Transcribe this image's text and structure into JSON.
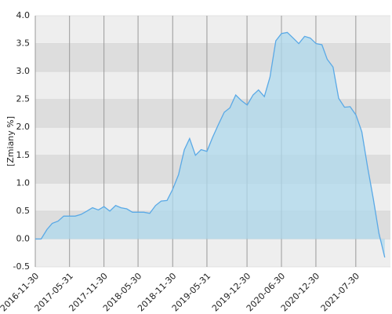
{
  "chart_data": {
    "type": "area",
    "y_label": "[Zmiany %]",
    "x": [
      "2016-11-30",
      "2016-12-31",
      "2017-01-31",
      "2017-02-28",
      "2017-03-31",
      "2017-04-30",
      "2017-05-31",
      "2017-06-30",
      "2017-07-31",
      "2017-08-31",
      "2017-09-30",
      "2017-10-31",
      "2017-11-30",
      "2017-12-31",
      "2018-01-31",
      "2018-02-28",
      "2018-03-31",
      "2018-04-30",
      "2018-05-31",
      "2018-06-30",
      "2018-07-31",
      "2018-08-31",
      "2018-09-30",
      "2018-10-31",
      "2018-11-30",
      "2018-12-31",
      "2019-01-31",
      "2019-02-28",
      "2019-03-31",
      "2019-04-30",
      "2019-05-31",
      "2019-06-30",
      "2019-07-31",
      "2019-08-31",
      "2019-09-30",
      "2019-10-31",
      "2019-11-30",
      "2019-12-31",
      "2020-01-31",
      "2020-02-29",
      "2020-03-31",
      "2020-04-30",
      "2020-05-31",
      "2020-06-30",
      "2020-07-31",
      "2020-08-31",
      "2020-09-30",
      "2020-10-31",
      "2020-11-30",
      "2020-12-31",
      "2021-01-31",
      "2021-02-28",
      "2021-03-31",
      "2021-04-30",
      "2021-05-31",
      "2021-06-30",
      "2021-07-31",
      "2021-08-31",
      "2021-09-30",
      "2021-10-31",
      "2021-11-30",
      "2021-12-31"
    ],
    "series": [
      {
        "color": "#5aa9e6",
        "fill": "#add8ec",
        "values": [
          0.0,
          0.0,
          0.17,
          0.28,
          0.32,
          0.41,
          0.41,
          0.41,
          0.44,
          0.5,
          0.56,
          0.52,
          0.58,
          0.5,
          0.6,
          0.56,
          0.54,
          0.48,
          0.48,
          0.48,
          0.46,
          0.6,
          0.68,
          0.69,
          0.89,
          1.15,
          1.6,
          1.8,
          1.5,
          1.6,
          1.57,
          1.82,
          2.05,
          2.27,
          2.35,
          2.58,
          2.48,
          2.4,
          2.58,
          2.67,
          2.55,
          2.9,
          3.55,
          3.68,
          3.7,
          3.6,
          3.5,
          3.63,
          3.6,
          3.5,
          3.48,
          3.22,
          3.08,
          2.52,
          2.36,
          2.37,
          2.22,
          1.92,
          1.3,
          0.72,
          0.1,
          -0.33
        ]
      }
    ],
    "xlim": [
      "2016-11-30",
      "2022-01-30"
    ],
    "xticks": [
      "2016-11-30",
      "2017-05-31",
      "2017-11-30",
      "2018-05-30",
      "2018-11-30",
      "2019-05-31",
      "2019-12-30",
      "2020-06-30",
      "2020-12-30",
      "2021-07-30"
    ],
    "ylim": [
      -0.5,
      4.0
    ],
    "yticks": [
      -0.5,
      {
        "value": 0,
        "label": "0.0"
      },
      0.5,
      {
        "value": 1,
        "label": "1.0"
      },
      1.5,
      {
        "value": 2,
        "label": "2.0"
      },
      2.5,
      {
        "value": 3,
        "label": "3.0"
      },
      3.5,
      {
        "value": 4,
        "label": "4.0"
      }
    ],
    "grid": true,
    "band_colors": [
      "#eeeeee",
      "#dddddd"
    ]
  }
}
